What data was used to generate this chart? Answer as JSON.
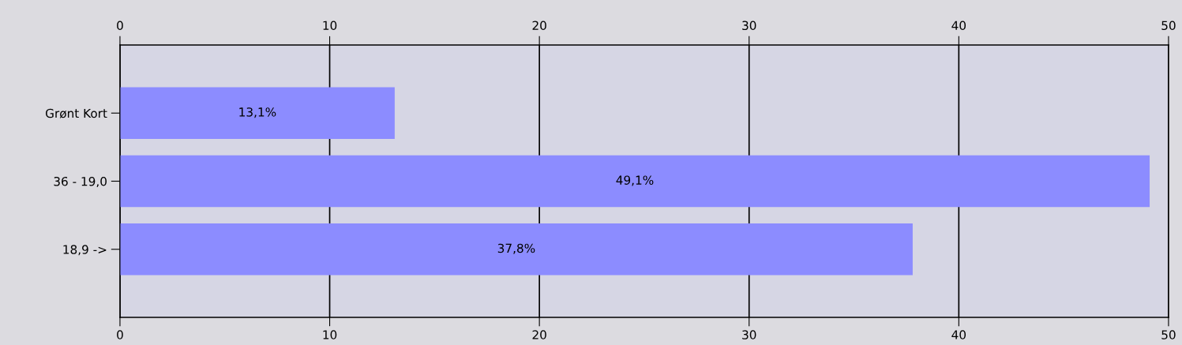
{
  "chart_data": {
    "type": "bar",
    "orientation": "horizontal",
    "categories": [
      "Grønt Kort",
      "36 - 19,0",
      "18,9 ->"
    ],
    "values": [
      13.1,
      49.1,
      37.8
    ],
    "value_labels": [
      "13,1%",
      "49,1%",
      "37,8%"
    ],
    "color": "#8c8cff",
    "xlim": [
      0,
      50
    ],
    "xticks": [
      0,
      10,
      20,
      30,
      40,
      50
    ],
    "x2lim": [
      0,
      50
    ],
    "x2ticks": [
      0,
      10,
      20,
      30,
      40,
      50
    ],
    "grid": "x"
  }
}
